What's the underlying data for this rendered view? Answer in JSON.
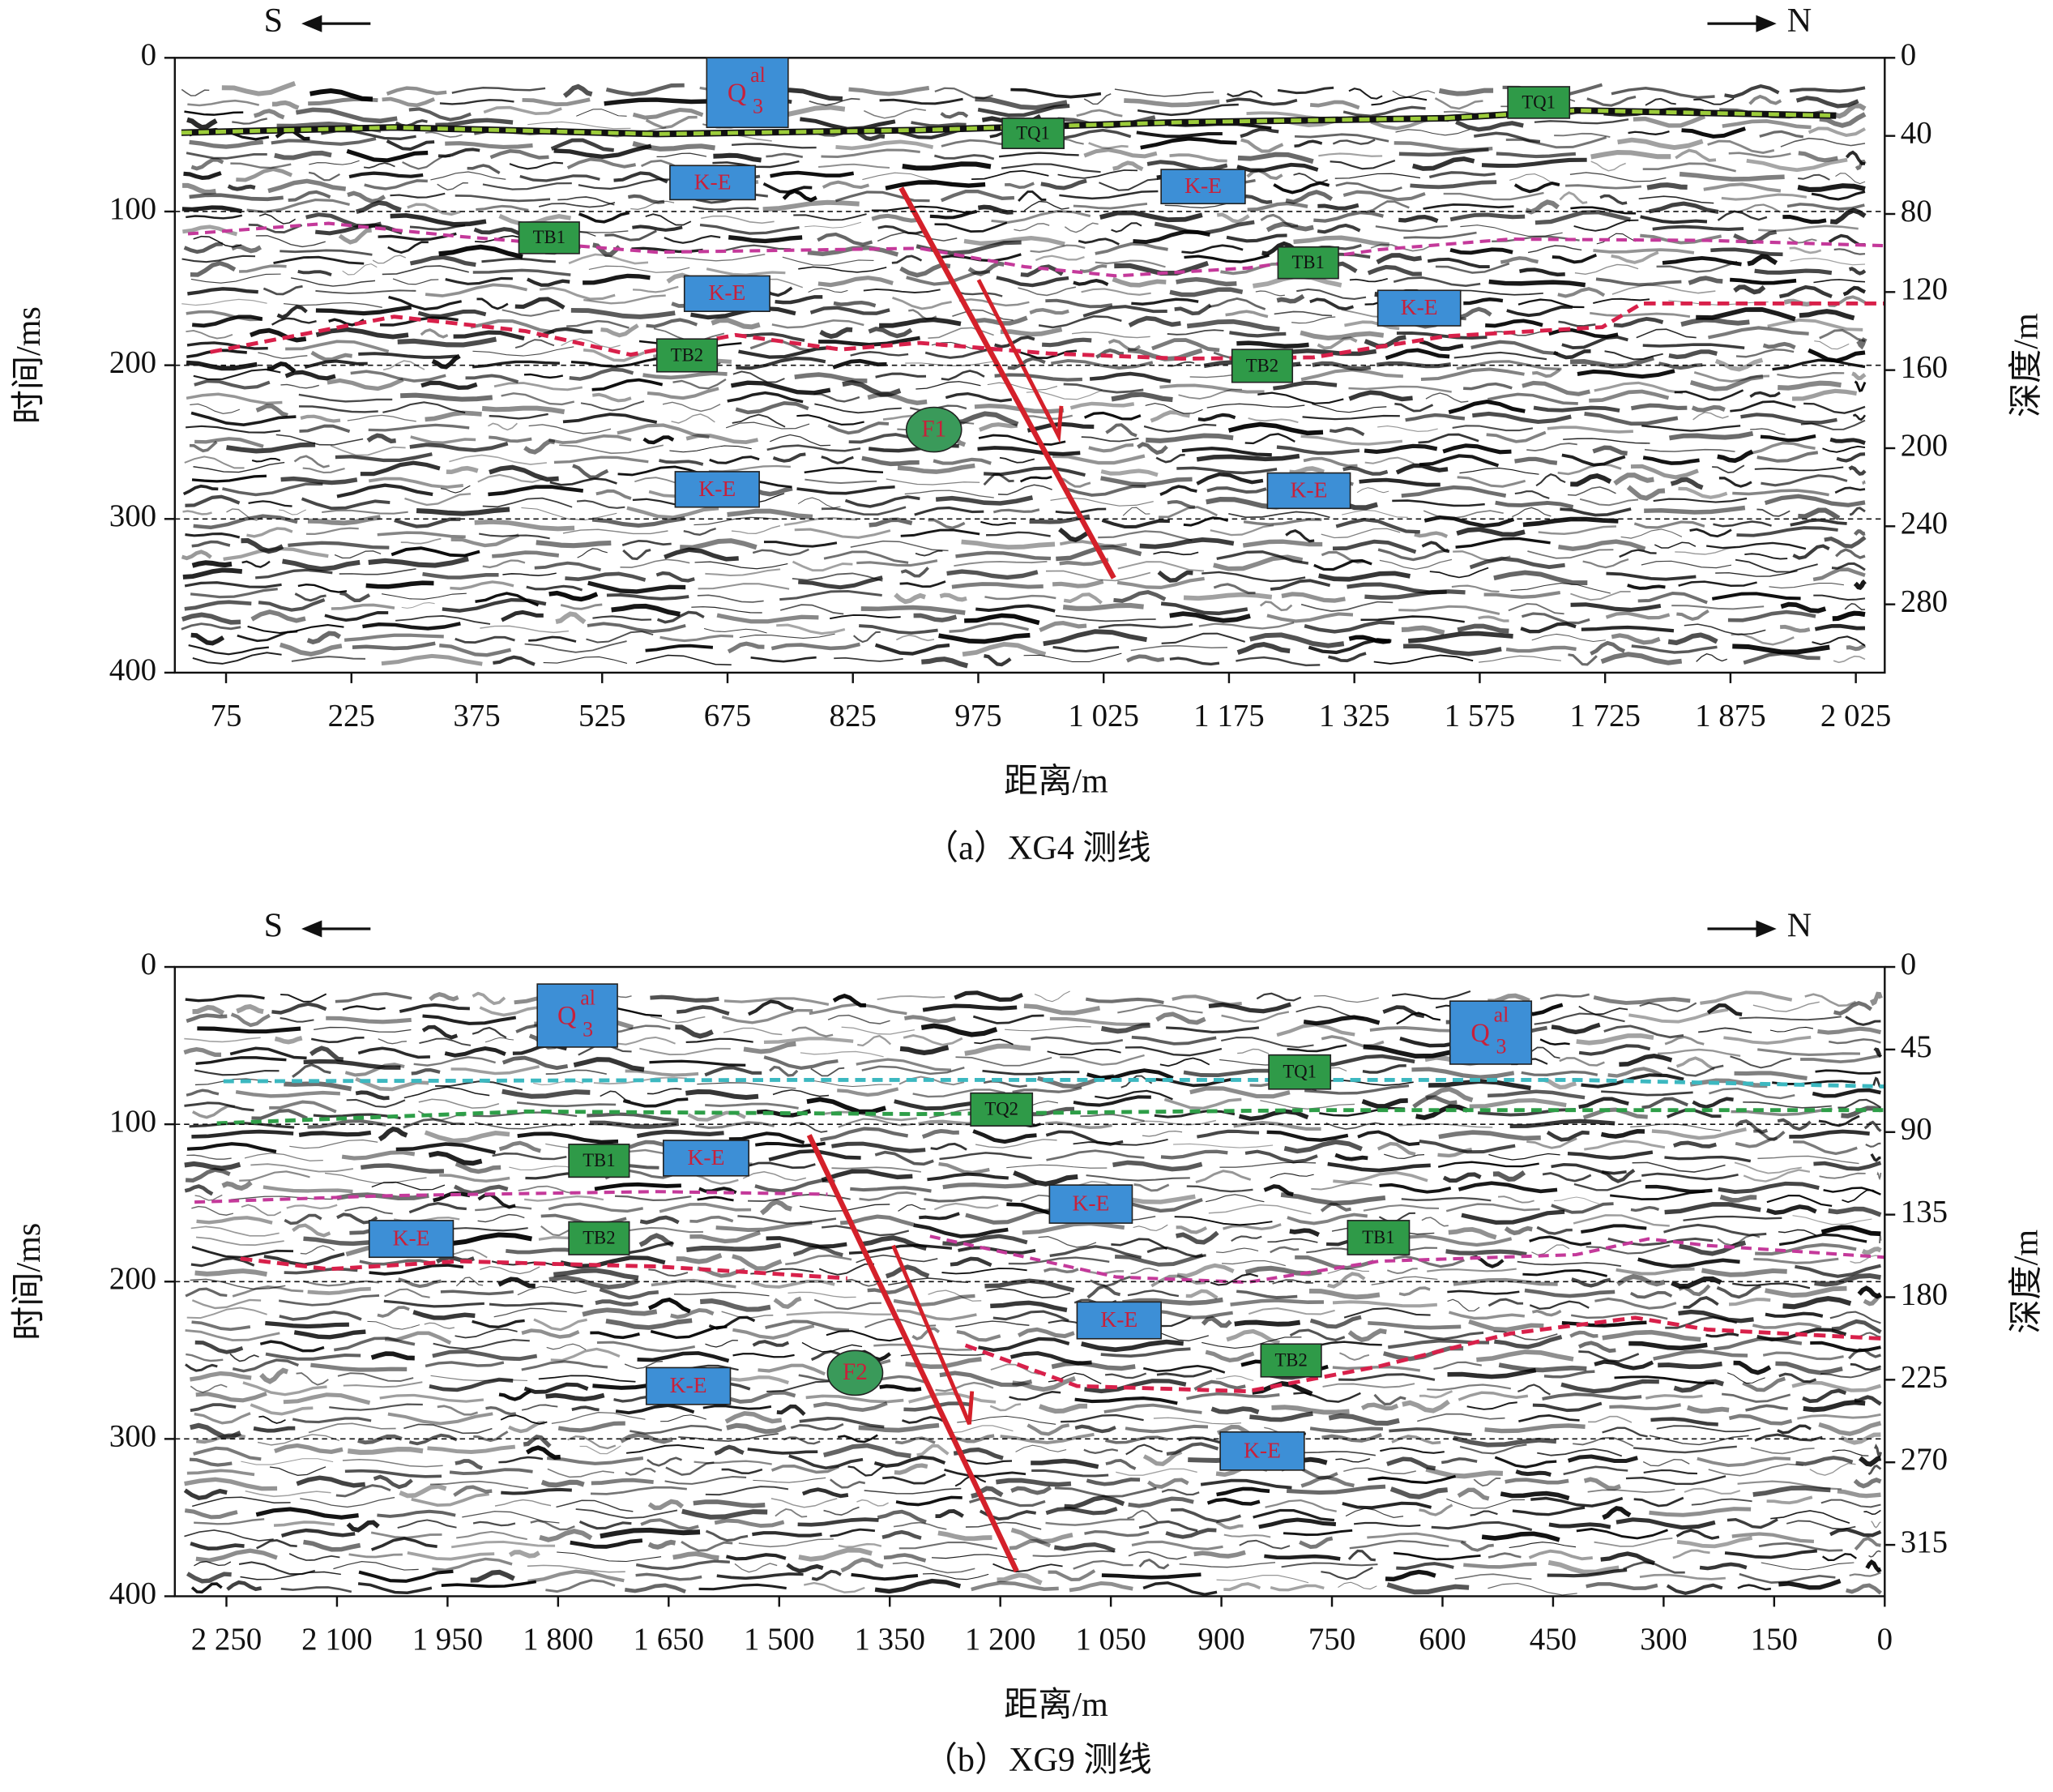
{
  "panels": [
    {
      "direction_left": "S",
      "direction_right": "N",
      "y_label": "时间/ms",
      "y2_label": "深度/m",
      "x_label": "距离/m",
      "caption": "（a）XG4 测线",
      "ylim": [
        0,
        400
      ],
      "yticks": [
        0,
        100,
        200,
        300,
        400
      ],
      "y2lim": [
        0,
        315
      ],
      "y2ticks": [
        0,
        40,
        80,
        120,
        160,
        200,
        240,
        280
      ],
      "x_categories": [
        "75",
        "225",
        "375",
        "525",
        "675",
        "825",
        "975",
        "1 025",
        "1 175",
        "1 325",
        "1 575",
        "1 725",
        "1 875",
        "2 025"
      ],
      "fault": "F1",
      "annotations": [
        {
          "kind": "formation",
          "base": "Q",
          "sup": "al",
          "sub": "3"
        },
        {
          "kind": "horizon",
          "text": "TQ1"
        },
        {
          "kind": "horizon",
          "text": "TQ1"
        },
        {
          "kind": "unit",
          "text": "K-E"
        },
        {
          "kind": "unit",
          "text": "K-E"
        },
        {
          "kind": "unit",
          "text": "K-E"
        },
        {
          "kind": "unit",
          "text": "K-E"
        },
        {
          "kind": "unit",
          "text": "K-E"
        },
        {
          "kind": "unit",
          "text": "K-E"
        },
        {
          "kind": "horizon",
          "text": "TB1"
        },
        {
          "kind": "horizon",
          "text": "TB1"
        },
        {
          "kind": "horizon",
          "text": "TB2"
        },
        {
          "kind": "horizon",
          "text": "TB2"
        }
      ]
    },
    {
      "direction_left": "S",
      "direction_right": "N",
      "y_label": "时间/ms",
      "y2_label": "深度/m",
      "x_label": "距离/m",
      "caption": "（b）XG9 测线",
      "ylim": [
        0,
        400
      ],
      "yticks": [
        0,
        100,
        200,
        300,
        400
      ],
      "y2lim": [
        0,
        343
      ],
      "y2ticks": [
        0,
        45,
        90,
        135,
        180,
        225,
        270,
        315
      ],
      "xlim": [
        2320,
        0
      ],
      "xticks": [
        {
          "value": 2250,
          "label": "2 250"
        },
        {
          "value": 2100,
          "label": "2 100"
        },
        {
          "value": 1950,
          "label": "1 950"
        },
        {
          "value": 1800,
          "label": "1 800"
        },
        {
          "value": 1650,
          "label": "1 650"
        },
        {
          "value": 1500,
          "label": "1 500"
        },
        {
          "value": 1350,
          "label": "1 350"
        },
        {
          "value": 1200,
          "label": "1 200"
        },
        {
          "value": 1050,
          "label": "1 050"
        },
        900,
        750,
        600,
        450,
        300,
        150,
        0
      ],
      "fault": "F2",
      "annotations": [
        {
          "kind": "formation",
          "base": "Q",
          "sup": "al",
          "sub": "3"
        },
        {
          "kind": "formation",
          "base": "Q",
          "sup": "al",
          "sub": "3"
        },
        {
          "kind": "horizon",
          "text": "TQ1"
        },
        {
          "kind": "horizon",
          "text": "TQ2"
        },
        {
          "kind": "horizon",
          "text": "TB1"
        },
        {
          "kind": "horizon",
          "text": "TB1"
        },
        {
          "kind": "horizon",
          "text": "TB2"
        },
        {
          "kind": "horizon",
          "text": "TB2"
        },
        {
          "kind": "unit",
          "text": "K-E"
        },
        {
          "kind": "unit",
          "text": "K-E"
        },
        {
          "kind": "unit",
          "text": "K-E"
        },
        {
          "kind": "unit",
          "text": "K-E"
        },
        {
          "kind": "unit",
          "text": "K-E"
        },
        {
          "kind": "unit",
          "text": "K-E"
        }
      ]
    }
  ]
}
